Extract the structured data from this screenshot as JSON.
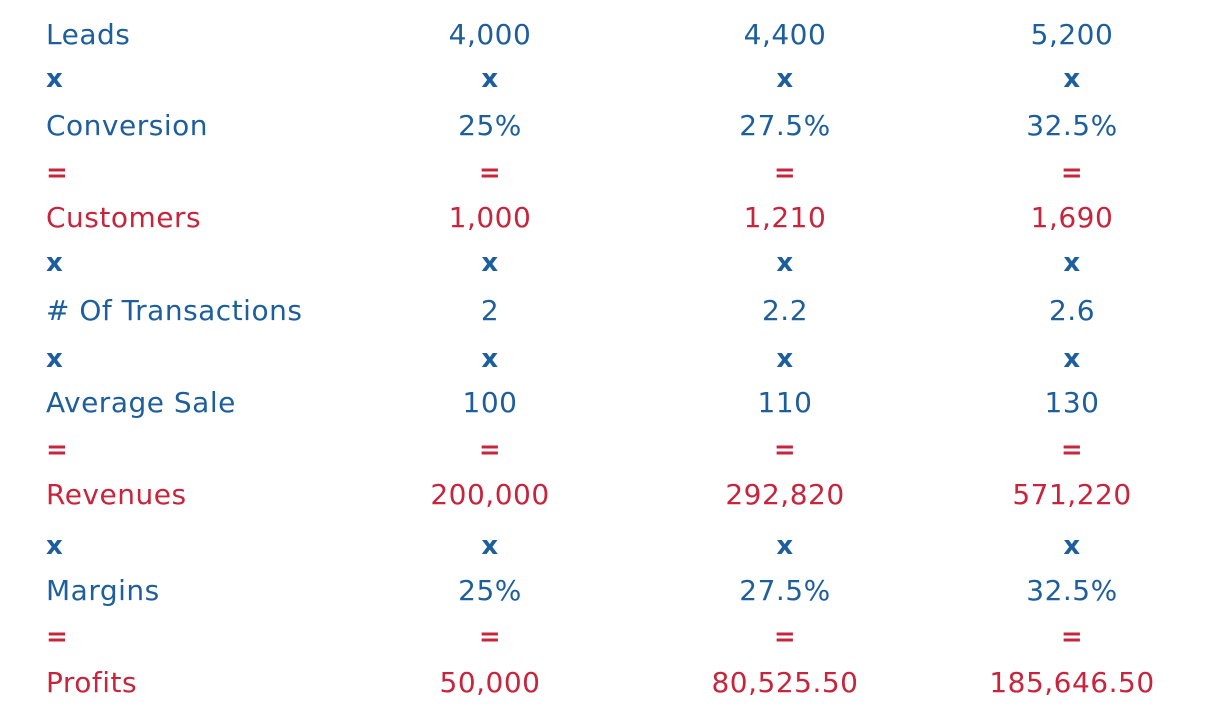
{
  "colors": {
    "blue": "#1d5e9c",
    "red": "#c8243c"
  },
  "rows": [
    {
      "label": "Leads",
      "values": [
        "4,000",
        "4,400",
        "5,200"
      ],
      "color": "blue",
      "kind": "value"
    },
    {
      "label": "x",
      "values": [
        "x",
        "x",
        "x"
      ],
      "color": "blue",
      "kind": "op"
    },
    {
      "label": "Conversion",
      "values": [
        "25%",
        "27.5%",
        "32.5%"
      ],
      "color": "blue",
      "kind": "value"
    },
    {
      "label": "=",
      "values": [
        "=",
        "=",
        "="
      ],
      "color": "red",
      "kind": "op"
    },
    {
      "label": "Customers",
      "values": [
        "1,000",
        "1,210",
        "1,690"
      ],
      "color": "red",
      "kind": "value"
    },
    {
      "label": "x",
      "values": [
        "x",
        "x",
        "x"
      ],
      "color": "blue",
      "kind": "op"
    },
    {
      "label": "# Of Transactions",
      "values": [
        "2",
        "2.2",
        "2.6"
      ],
      "color": "blue",
      "kind": "value"
    },
    {
      "label": "x",
      "values": [
        "x",
        "x",
        "x"
      ],
      "color": "blue",
      "kind": "op"
    },
    {
      "label": "Average Sale",
      "values": [
        "100",
        "110",
        "130"
      ],
      "color": "blue",
      "kind": "value"
    },
    {
      "label": "=",
      "values": [
        "=",
        "=",
        "="
      ],
      "color": "red",
      "kind": "op"
    },
    {
      "label": "Revenues",
      "values": [
        "200,000",
        "292,820",
        "571,220"
      ],
      "color": "red",
      "kind": "value"
    },
    {
      "label": "x",
      "values": [
        "x",
        "x",
        "x"
      ],
      "color": "blue",
      "kind": "op"
    },
    {
      "label": "Margins",
      "values": [
        "25%",
        "27.5%",
        "32.5%"
      ],
      "color": "blue",
      "kind": "value"
    },
    {
      "label": "=",
      "values": [
        "=",
        "=",
        "="
      ],
      "color": "red",
      "kind": "op"
    },
    {
      "label": "Profits",
      "values": [
        "50,000",
        "80,525.50",
        "185,646.50"
      ],
      "color": "red",
      "kind": "value"
    }
  ]
}
